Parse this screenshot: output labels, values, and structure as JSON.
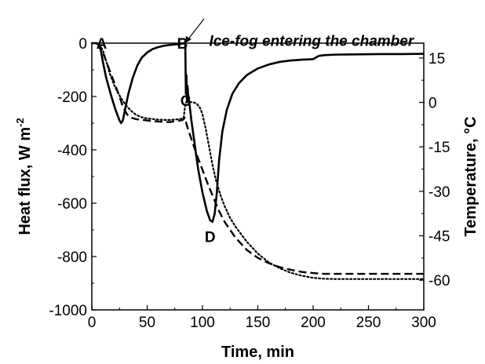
{
  "chart_data": {
    "type": "line",
    "xlabel": "Time, min",
    "ylabel": "Heat flux, W m",
    "ylabel_sup": "-2",
    "y2label": "Temperature, °C",
    "xlim": [
      0,
      300
    ],
    "ylim": [
      -1000,
      0
    ],
    "y2lim": [
      -70,
      20
    ],
    "xticks": [
      0,
      50,
      100,
      150,
      200,
      250,
      300
    ],
    "yticks": [
      0,
      -200,
      -400,
      -600,
      -800,
      -1000
    ],
    "y2ticks": [
      15,
      0,
      -15,
      -30,
      -45,
      -60
    ],
    "grid": false,
    "legend": "none",
    "series": [
      {
        "axis": "left",
        "style": "solid",
        "x": [
          0,
          2,
          4,
          6,
          8,
          10,
          13,
          17,
          21,
          25,
          26.5,
          28,
          30,
          33,
          37,
          41,
          45,
          50,
          55,
          60,
          65,
          70,
          75,
          80,
          84,
          84.5,
          85,
          85.5,
          86,
          86.5,
          87,
          88,
          90,
          93,
          96,
          100,
          104,
          107,
          109,
          111,
          113,
          115,
          118,
          122,
          127,
          133,
          140,
          150,
          160,
          170,
          180,
          190,
          200,
          205,
          210,
          220,
          240,
          260,
          280,
          300
        ],
        "y": [
          0,
          0,
          0,
          -5,
          -25,
          -70,
          -130,
          -190,
          -245,
          -290,
          -300,
          -290,
          -250,
          -190,
          -130,
          -85,
          -55,
          -35,
          -22,
          -15,
          -10,
          -7,
          -5,
          -3,
          0,
          -10,
          -190,
          -120,
          -220,
          -160,
          -190,
          -220,
          -290,
          -380,
          -470,
          -560,
          -630,
          -665,
          -670,
          -640,
          -560,
          -440,
          -330,
          -250,
          -190,
          -150,
          -120,
          -95,
          -80,
          -70,
          -65,
          -62,
          -60,
          -48,
          -45,
          -43,
          -42,
          -41,
          -41,
          -40
        ]
      },
      {
        "axis": "left",
        "style": "dash",
        "x": [
          6,
          10,
          15,
          20,
          25,
          28,
          32,
          36,
          40,
          45,
          50,
          55,
          60,
          65,
          70,
          75,
          80,
          82,
          84,
          86,
          90,
          95,
          100,
          105,
          110,
          115,
          120,
          130,
          140,
          150,
          160,
          170,
          180,
          190,
          200,
          210,
          220,
          240,
          260,
          280,
          300
        ],
        "y": [
          0,
          -35,
          -90,
          -145,
          -200,
          -238,
          -268,
          -280,
          -285,
          -287,
          -290,
          -292,
          -294,
          -295,
          -296,
          -293,
          -290,
          -288,
          -280,
          -310,
          -360,
          -420,
          -475,
          -530,
          -580,
          -630,
          -670,
          -730,
          -775,
          -805,
          -825,
          -840,
          -850,
          -858,
          -862,
          -865,
          -865,
          -865,
          -865,
          -865,
          -865
        ]
      },
      {
        "axis": "right",
        "style": "dot",
        "x": [
          0,
          4,
          7,
          10,
          13,
          16,
          20,
          24,
          28,
          32,
          36,
          40,
          45,
          50,
          55,
          60,
          65,
          70,
          75,
          80,
          83,
          84,
          85,
          88,
          92,
          95,
          98,
          100,
          103,
          106,
          109,
          112,
          116,
          120,
          125,
          130,
          140,
          150,
          160,
          170,
          180,
          190,
          200,
          210,
          220,
          240,
          260,
          280,
          300
        ],
        "y": [
          20,
          20,
          19.5,
          17.5,
          14,
          10,
          6,
          3,
          0.5,
          -1.5,
          -3,
          -4.2,
          -5,
          -5.4,
          -5.6,
          -5.8,
          -5.9,
          -5.9,
          -5.8,
          -5.6,
          -5.3,
          -2,
          0,
          0.2,
          0,
          -0.5,
          -2,
          -4,
          -9,
          -15,
          -21,
          -26,
          -31,
          -35,
          -39,
          -42,
          -47,
          -51,
          -54,
          -56,
          -57.5,
          -58.5,
          -59.2,
          -59.5,
          -59.6,
          -59.6,
          -59.6,
          -59.6,
          -59.6
        ]
      }
    ],
    "annotations": [
      {
        "label": "A",
        "x": 4,
        "y": -20
      },
      {
        "label": "B",
        "x": 77,
        "y": -20
      },
      {
        "label": "C",
        "x": 80,
        "y": -235
      },
      {
        "label": "D",
        "x": 102,
        "y": -745
      },
      {
        "label": "Ice-fog entering the chamber",
        "x": 106,
        "y": -10
      }
    ]
  }
}
